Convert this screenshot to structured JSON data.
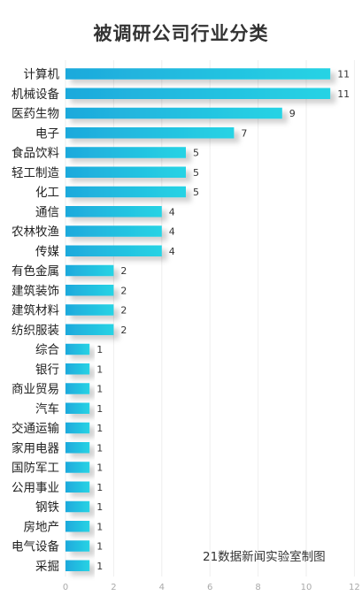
{
  "chart_data": {
    "type": "bar",
    "orientation": "horizontal",
    "title": "被调研公司行业分类",
    "categories": [
      "计算机",
      "机械设备",
      "医药生物",
      "电子",
      "食品饮料",
      "轻工制造",
      "化工",
      "通信",
      "农林牧渔",
      "传媒",
      "有色金属",
      "建筑装饰",
      "建筑材料",
      "纺织服装",
      "综合",
      "银行",
      "商业贸易",
      "汽车",
      "交通运输",
      "家用电器",
      "国防军工",
      "公用事业",
      "钢铁",
      "房地产",
      "电气设备",
      "采掘"
    ],
    "values": [
      11,
      11,
      9,
      7,
      5,
      5,
      5,
      4,
      4,
      4,
      2,
      2,
      2,
      2,
      1,
      1,
      1,
      1,
      1,
      1,
      1,
      1,
      1,
      1,
      1,
      1
    ],
    "xlim": [
      0,
      12
    ],
    "xticks": [
      "0",
      "2",
      "4",
      "6",
      "8",
      "10",
      "12"
    ],
    "grid": true,
    "bar_gradient": [
      "#1ea9dc",
      "#27d3e4"
    ]
  },
  "credit": "21数据新闻实验室制图"
}
